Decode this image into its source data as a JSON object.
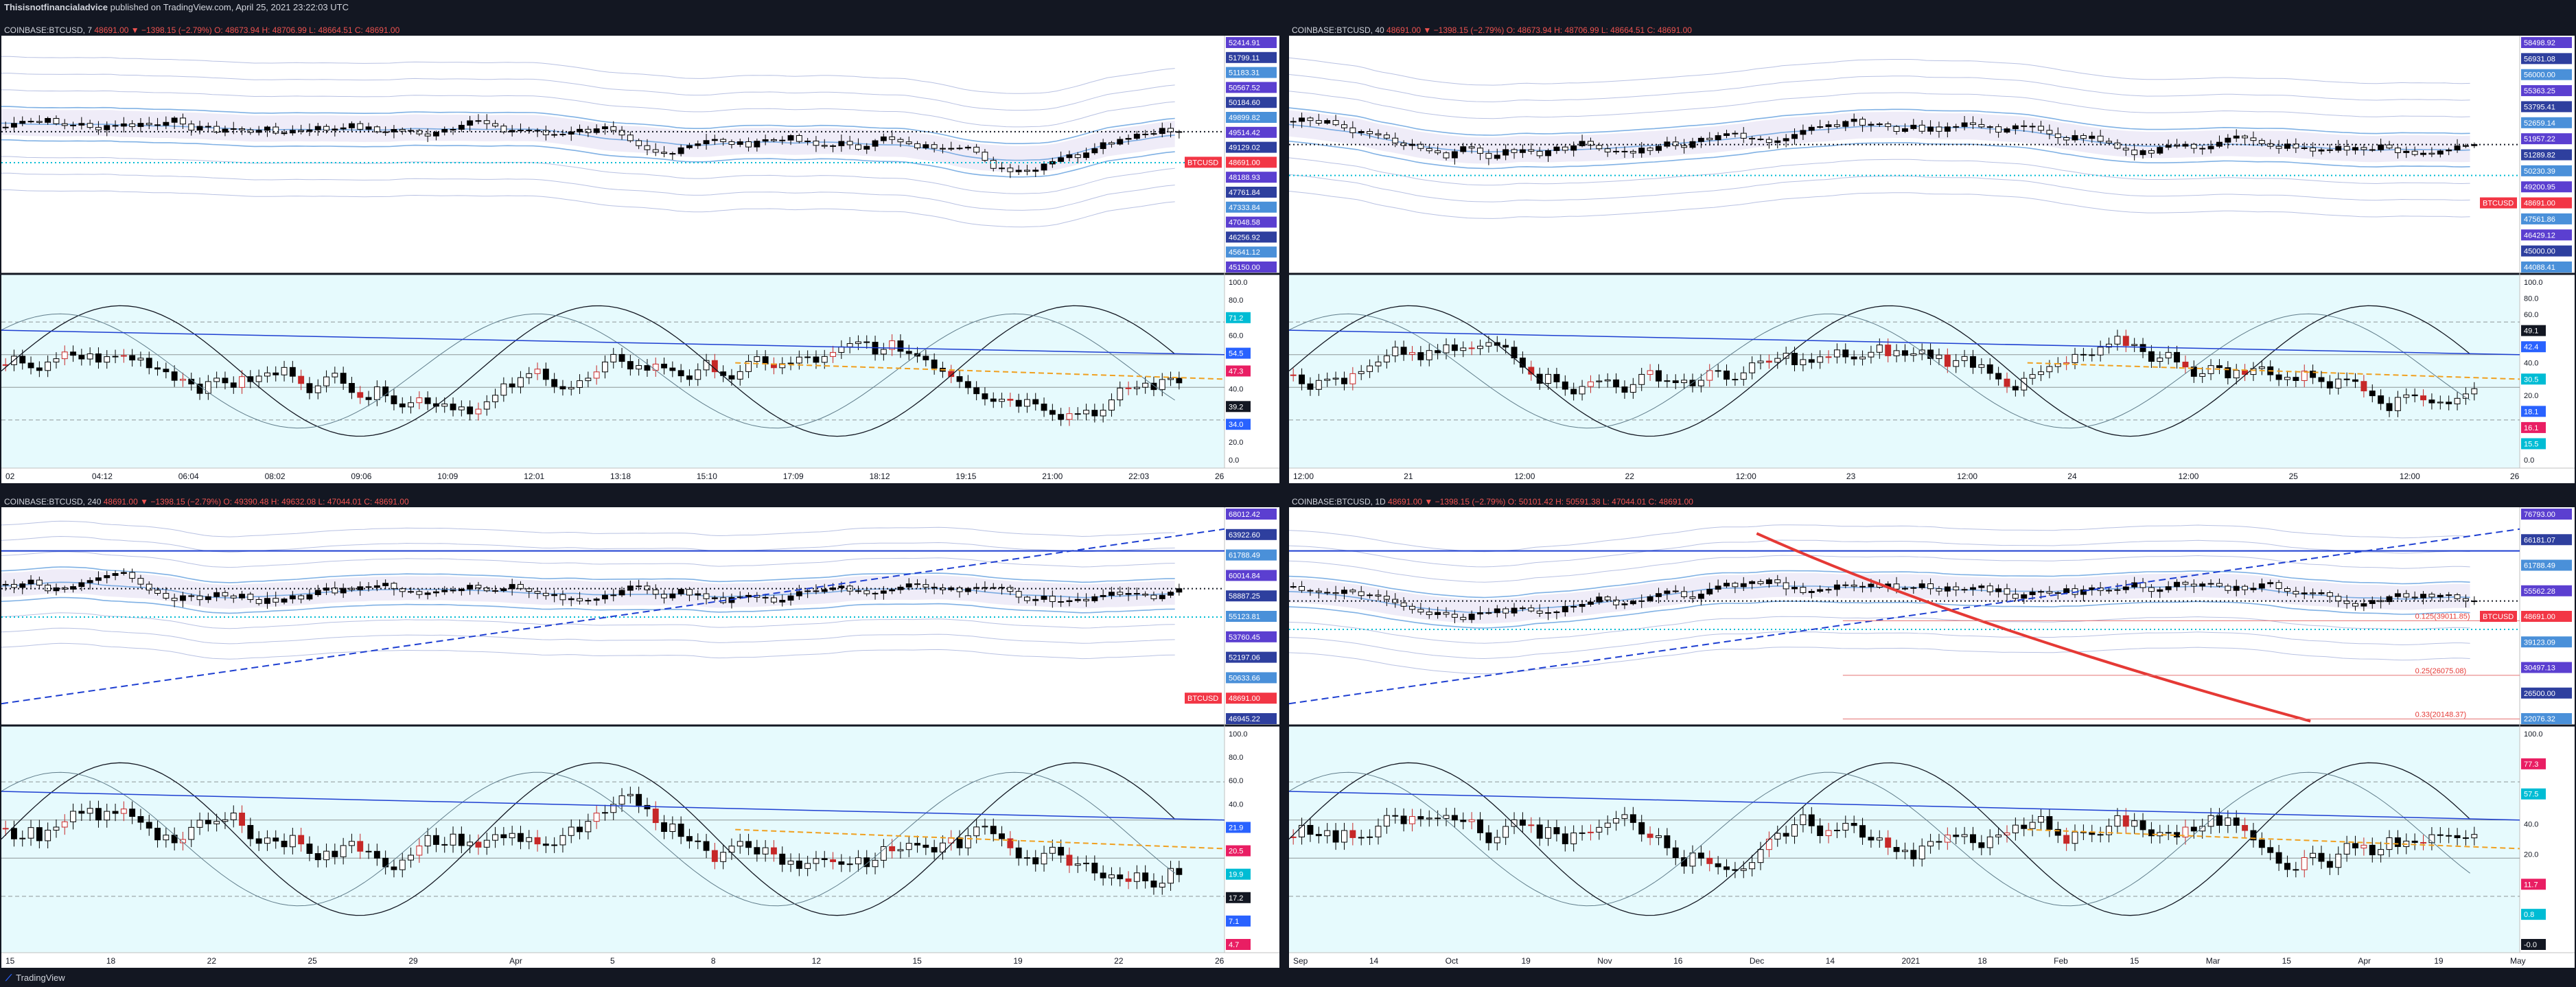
{
  "header": {
    "author": "Thisisnotfinancialadvice",
    "published": "published on TradingView.com, April 25, 2021 23:22:03 UTC"
  },
  "footer": {
    "brand": "TradingView",
    "logo_icon": "tradingview-logo-icon"
  },
  "colors": {
    "bg": "#131722",
    "panel_bg": "#ffffff",
    "up": "#26a69a",
    "candle": "#000000",
    "down_label": "#ef5350",
    "indicator_bg": "#c8f5fa",
    "band_blue": "#4a90d9",
    "band_purple": "#7b61c9",
    "price_tag": "#f23645",
    "dash_blue": "#1e3fd1",
    "dash_orange": "#f0a020"
  },
  "panels": [
    {
      "id": "p1",
      "symbol": "COINBASE:BTCUSD, 7",
      "stats": "48691.00 ▼ −1398.15 (−2.79%)",
      "ohlc": "O: 48673.94 H: 48706.99 L: 48664.51 C: 48691.00",
      "x_labels": [
        "02",
        "04:12",
        "06:04",
        "08:02",
        "09:06",
        "10:09",
        "12:01",
        "13:18",
        "15:10",
        "17:09",
        "18:12",
        "19:15",
        "21:00",
        "22:03",
        "26"
      ],
      "price_labels": [
        "52414.91",
        "51799.11",
        "51183.31",
        "50567.52",
        "50184.60",
        "49899.82",
        "49514.42",
        "49129.02",
        "48691.00",
        "48188.93",
        "47761.84",
        "47333.84",
        "47048.58",
        "46256.92",
        "45641.12",
        "45150.00"
      ],
      "price_tag": "BTCUSD",
      "price_tag_value": "48691.00",
      "osc_labels": [
        "100.0",
        "80.0",
        "71.2",
        "60.0",
        "54.5",
        "47.3",
        "40.0",
        "39.2",
        "34.0",
        "20.0",
        "0.0"
      ]
    },
    {
      "id": "p2",
      "symbol": "COINBASE:BTCUSD, 40",
      "stats": "48691.00 ▼ −1398.15 (−2.79%)",
      "ohlc": "O: 48673.94 H: 48706.99 L: 48664.51 C: 48691.00",
      "x_labels": [
        "12:00",
        "21",
        "12:00",
        "22",
        "12:00",
        "23",
        "12:00",
        "24",
        "12:00",
        "25",
        "12:00",
        "26"
      ],
      "price_labels": [
        "58498.92",
        "56931.08",
        "56000.00",
        "55363.25",
        "53795.41",
        "52659.14",
        "51957.22",
        "51289.82",
        "50230.39",
        "49200.95",
        "48691.00",
        "47561.86",
        "46429.12",
        "45000.00",
        "44088.41"
      ],
      "price_tag": "BTCUSD",
      "price_tag_value": "48691.00",
      "osc_labels": [
        "100.0",
        "80.0",
        "60.0",
        "49.1",
        "42.4",
        "40.0",
        "30.5",
        "20.0",
        "18.1",
        "16.1",
        "15.5",
        "0.0"
      ]
    },
    {
      "id": "p3",
      "symbol": "COINBASE:BTCUSD, 240",
      "stats": "48691.00 ▼ −1398.15 (−2.79%)",
      "ohlc": "O: 49390.48 H: 49632.08 L: 47044.01 C: 48691.00",
      "x_labels": [
        "15",
        "18",
        "22",
        "25",
        "29",
        "Apr",
        "5",
        "8",
        "12",
        "15",
        "19",
        "22",
        "26"
      ],
      "price_labels": [
        "68012.42",
        "63922.60",
        "61788.49",
        "60014.84",
        "58887.25",
        "55123.81",
        "53760.45",
        "52197.06",
        "50633.66",
        "48691.00",
        "46945.22"
      ],
      "price_tag": "BTCUSD",
      "price_tag_value": "48691.00",
      "osc_labels": [
        "100.0",
        "80.0",
        "60.0",
        "40.0",
        "21.9",
        "20.5",
        "19.9",
        "17.2",
        "7.1",
        "4.7"
      ]
    },
    {
      "id": "p4",
      "symbol": "COINBASE:BTCUSD, 1D",
      "stats": "48691.00 ▼ −1398.15 (−2.79%)",
      "ohlc": "O: 50101.42 H: 50591.38 L: 47044.01 C: 48691.00",
      "x_labels": [
        "Sep",
        "14",
        "Oct",
        "19",
        "Nov",
        "16",
        "Dec",
        "14",
        "2021",
        "18",
        "Feb",
        "15",
        "Mar",
        "15",
        "Apr",
        "19",
        "May"
      ],
      "price_labels": [
        "76793.00",
        "66181.07",
        "61788.49",
        "55562.28",
        "48691.00",
        "39123.09",
        "30497.13",
        "26500.00",
        "22076.32"
      ],
      "price_tag": "BTCUSD",
      "price_tag_value": "48691.00",
      "fib_labels": [
        "0.125(39011.85)",
        "0.25(26075.08)",
        "0.33(20148.37)"
      ],
      "osc_labels": [
        "100.0",
        "77.3",
        "57.5",
        "40.0",
        "20.0",
        "11.7",
        "0.8",
        "-0.0"
      ]
    }
  ]
}
